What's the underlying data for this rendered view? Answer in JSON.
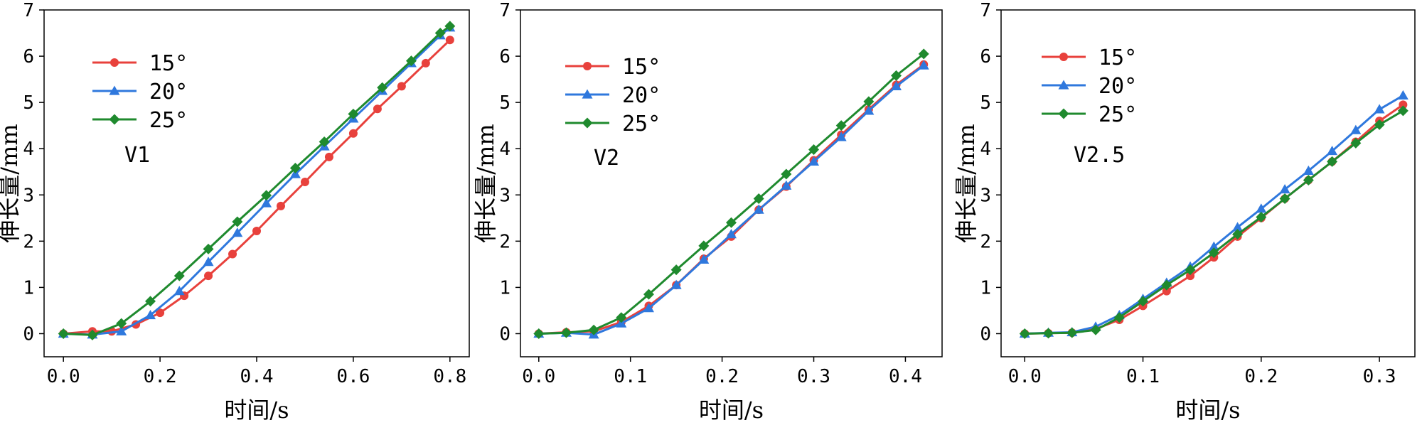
{
  "chart_data": [
    {
      "type": "line",
      "annotation": "V1",
      "xlabel": "时间/s",
      "ylabel": "伸长量/mm",
      "xlim": [
        -0.04,
        0.84
      ],
      "ylim": [
        -0.5,
        7
      ],
      "xticks": [
        "0.0",
        "0.2",
        "0.4",
        "0.6",
        "0.8"
      ],
      "xtick_values": [
        0.0,
        0.2,
        0.4,
        0.6,
        0.8
      ],
      "yticks": [
        "0",
        "1",
        "2",
        "3",
        "4",
        "5",
        "6",
        "7"
      ],
      "ytick_values": [
        0,
        1,
        2,
        3,
        4,
        5,
        6,
        7
      ],
      "series": [
        {
          "name": "15°",
          "color": "#e8413c",
          "marker": "circle",
          "x": [
            0.0,
            0.06,
            0.1,
            0.15,
            0.2,
            0.25,
            0.3,
            0.35,
            0.4,
            0.45,
            0.5,
            0.55,
            0.6,
            0.65,
            0.7,
            0.75,
            0.8
          ],
          "y": [
            0.0,
            0.05,
            0.05,
            0.2,
            0.45,
            0.82,
            1.25,
            1.72,
            2.22,
            2.76,
            3.28,
            3.82,
            4.33,
            4.86,
            5.35,
            5.85,
            6.35
          ]
        },
        {
          "name": "20°",
          "color": "#2f78dd",
          "marker": "triangle",
          "x": [
            0.0,
            0.06,
            0.12,
            0.18,
            0.24,
            0.3,
            0.36,
            0.42,
            0.48,
            0.54,
            0.6,
            0.66,
            0.72,
            0.78,
            0.8
          ],
          "y": [
            0.0,
            -0.02,
            0.05,
            0.4,
            0.92,
            1.55,
            2.18,
            2.82,
            3.45,
            4.05,
            4.65,
            5.25,
            5.85,
            6.45,
            6.62
          ]
        },
        {
          "name": "25°",
          "color": "#1f8a2e",
          "marker": "diamond",
          "x": [
            0.0,
            0.06,
            0.12,
            0.18,
            0.24,
            0.3,
            0.36,
            0.42,
            0.48,
            0.54,
            0.6,
            0.66,
            0.72,
            0.78,
            0.8
          ],
          "y": [
            0.0,
            -0.03,
            0.22,
            0.7,
            1.25,
            1.83,
            2.42,
            2.99,
            3.58,
            4.15,
            4.75,
            5.32,
            5.9,
            6.5,
            6.65
          ]
        }
      ]
    },
    {
      "type": "line",
      "annotation": "V2",
      "xlabel": "时间/s",
      "ylabel": "伸长量/mm",
      "xlim": [
        -0.02,
        0.44
      ],
      "ylim": [
        -0.5,
        7
      ],
      "xticks": [
        "0.0",
        "0.1",
        "0.2",
        "0.3",
        "0.4"
      ],
      "xtick_values": [
        0.0,
        0.1,
        0.2,
        0.3,
        0.4
      ],
      "yticks": [
        "0",
        "1",
        "2",
        "3",
        "4",
        "5",
        "6",
        "7"
      ],
      "ytick_values": [
        0,
        1,
        2,
        3,
        4,
        5,
        6,
        7
      ],
      "series": [
        {
          "name": "15°",
          "color": "#e8413c",
          "marker": "circle",
          "x": [
            0.0,
            0.03,
            0.06,
            0.09,
            0.12,
            0.15,
            0.18,
            0.21,
            0.24,
            0.27,
            0.3,
            0.33,
            0.36,
            0.39,
            0.42
          ],
          "y": [
            0.0,
            0.03,
            0.05,
            0.25,
            0.6,
            1.05,
            1.62,
            2.1,
            2.68,
            3.18,
            3.75,
            4.3,
            4.85,
            5.38,
            5.82
          ]
        },
        {
          "name": "20°",
          "color": "#2f78dd",
          "marker": "triangle",
          "x": [
            0.0,
            0.03,
            0.06,
            0.09,
            0.12,
            0.15,
            0.18,
            0.21,
            0.24,
            0.27,
            0.3,
            0.33,
            0.36,
            0.39,
            0.42
          ],
          "y": [
            0.0,
            0.02,
            -0.02,
            0.22,
            0.55,
            1.05,
            1.6,
            2.15,
            2.68,
            3.2,
            3.72,
            4.25,
            4.82,
            5.35,
            5.8
          ]
        },
        {
          "name": "25°",
          "color": "#1f8a2e",
          "marker": "diamond",
          "x": [
            0.0,
            0.03,
            0.06,
            0.09,
            0.12,
            0.15,
            0.18,
            0.21,
            0.24,
            0.27,
            0.3,
            0.33,
            0.36,
            0.39,
            0.42
          ],
          "y": [
            0.0,
            0.02,
            0.08,
            0.35,
            0.85,
            1.38,
            1.9,
            2.4,
            2.92,
            3.45,
            3.98,
            4.5,
            5.02,
            5.58,
            6.05
          ]
        }
      ]
    },
    {
      "type": "line",
      "annotation": "V2.5",
      "xlabel": "时间/s",
      "ylabel": "伸长量/mm",
      "xlim": [
        -0.02,
        0.33
      ],
      "ylim": [
        -0.5,
        7
      ],
      "xticks": [
        "0.0",
        "0.1",
        "0.2",
        "0.3"
      ],
      "xtick_values": [
        0.0,
        0.1,
        0.2,
        0.3
      ],
      "yticks": [
        "0",
        "1",
        "2",
        "3",
        "4",
        "5",
        "6",
        "7"
      ],
      "ytick_values": [
        0,
        1,
        2,
        3,
        4,
        5,
        6,
        7
      ],
      "series": [
        {
          "name": "15°",
          "color": "#e8413c",
          "marker": "circle",
          "x": [
            0.0,
            0.02,
            0.04,
            0.06,
            0.08,
            0.1,
            0.12,
            0.14,
            0.16,
            0.18,
            0.2,
            0.22,
            0.24,
            0.26,
            0.28,
            0.3,
            0.32
          ],
          "y": [
            0.0,
            0.01,
            0.02,
            0.1,
            0.3,
            0.6,
            0.92,
            1.25,
            1.65,
            2.1,
            2.5,
            2.92,
            3.32,
            3.72,
            4.15,
            4.6,
            4.95
          ]
        },
        {
          "name": "20°",
          "color": "#2f78dd",
          "marker": "triangle",
          "x": [
            0.0,
            0.02,
            0.04,
            0.06,
            0.08,
            0.1,
            0.12,
            0.14,
            0.16,
            0.18,
            0.2,
            0.22,
            0.24,
            0.26,
            0.28,
            0.3,
            0.32
          ],
          "y": [
            0.0,
            0.02,
            0.03,
            0.15,
            0.4,
            0.75,
            1.1,
            1.45,
            1.88,
            2.3,
            2.7,
            3.12,
            3.52,
            3.95,
            4.4,
            4.85,
            5.15
          ]
        },
        {
          "name": "25°",
          "color": "#1f8a2e",
          "marker": "diamond",
          "x": [
            0.0,
            0.02,
            0.04,
            0.06,
            0.08,
            0.1,
            0.12,
            0.14,
            0.16,
            0.18,
            0.2,
            0.22,
            0.24,
            0.26,
            0.28,
            0.3,
            0.32
          ],
          "y": [
            0.0,
            0.01,
            0.02,
            0.08,
            0.35,
            0.7,
            1.05,
            1.38,
            1.75,
            2.15,
            2.52,
            2.92,
            3.32,
            3.72,
            4.12,
            4.52,
            4.82
          ]
        }
      ]
    }
  ]
}
